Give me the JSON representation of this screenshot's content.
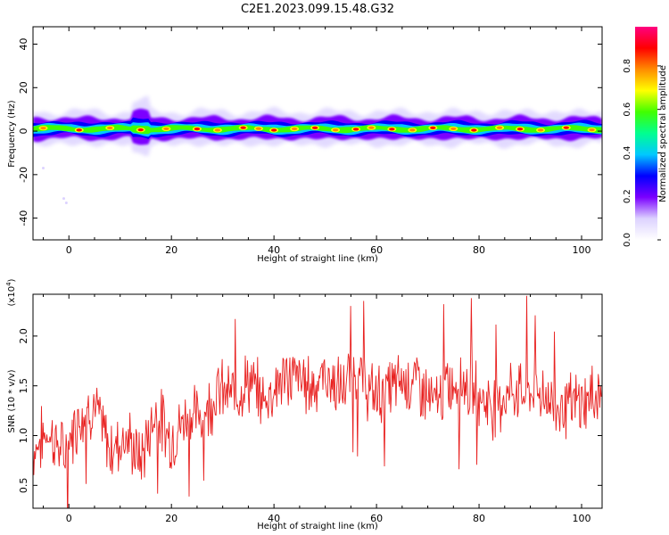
{
  "title": "C2E1.2023.099.15.48.G32",
  "colorbar": {
    "label": "Normalized spectral amplitude",
    "ticks": [
      "0.0",
      "0.2",
      "0.4",
      "0.6",
      "0.8"
    ],
    "tick_values": [
      0.0,
      0.2,
      0.4,
      0.6,
      0.8
    ],
    "range": [
      0.0,
      0.98
    ],
    "colors": [
      "#ffffff",
      "#dcd2ff",
      "#7b00ff",
      "#0000ff",
      "#00c8ff",
      "#00ff90",
      "#40ff00",
      "#ffff00",
      "#ff8c00",
      "#ff0000",
      "#ff0080"
    ]
  },
  "chart_data": [
    {
      "type": "heatmap",
      "xlabel": "Height of straight line (km)",
      "ylabel": "Frequency (Hz)",
      "xlim": [
        -7,
        104
      ],
      "ylim": [
        -50,
        48
      ],
      "x_ticks": [
        0,
        20,
        40,
        60,
        80,
        100
      ],
      "x_tick_labels": [
        "0",
        "20",
        "40",
        "60",
        "80",
        "100"
      ],
      "y_ticks": [
        -40,
        -20,
        0,
        20,
        40
      ],
      "y_tick_labels": [
        "-40",
        "-20",
        "0",
        "20",
        "40"
      ],
      "band": {
        "center_frequency_hz": 1,
        "core_halfwidth_hz": 2,
        "envelope_halfwidth_hz": 5,
        "notes": "Narrow high-amplitude band near 0-2 Hz across all heights"
      },
      "peak_heights_km": [
        -5,
        2,
        8,
        14,
        19,
        25,
        29,
        34,
        37,
        40,
        44,
        48,
        52,
        56,
        59,
        63,
        67,
        71,
        75,
        79,
        84,
        88,
        92,
        97,
        102
      ]
    },
    {
      "type": "line",
      "xlabel": "Height of straight line (km)",
      "ylabel": "SNR (10 * v/v)",
      "y_multiplier": "(x10",
      "y_multiplier_exp": "4",
      "xlim": [
        -7,
        104
      ],
      "ylim": [
        0.27,
        2.42
      ],
      "x_ticks": [
        0,
        20,
        40,
        60,
        80,
        100
      ],
      "x_tick_labels": [
        "0",
        "20",
        "40",
        "60",
        "80",
        "100"
      ],
      "y_ticks": [
        0.5,
        1.0,
        1.5,
        2.0
      ],
      "y_tick_labels": [
        "0.5",
        "1.0",
        "1.5",
        "2.0"
      ],
      "series": [
        {
          "color": "#e8201f",
          "x": [
            -7,
            -4,
            -1,
            2,
            5,
            8,
            11,
            14,
            17,
            20,
            23,
            26,
            29,
            32,
            35,
            38,
            41,
            44,
            47,
            50,
            53,
            56,
            59,
            62,
            65,
            68,
            71,
            74,
            77,
            80,
            83,
            86,
            89,
            92,
            95,
            98,
            101,
            104
          ],
          "y": [
            0.85,
            1.05,
            0.8,
            1.2,
            1.3,
            0.85,
            1.0,
            0.75,
            1.25,
            0.95,
            1.2,
            1.2,
            1.45,
            1.4,
            1.55,
            1.35,
            1.55,
            1.6,
            1.5,
            1.6,
            1.45,
            1.65,
            1.4,
            1.45,
            1.55,
            1.55,
            1.3,
            1.5,
            1.55,
            1.4,
            1.3,
            1.45,
            1.45,
            1.45,
            1.3,
            1.3,
            1.35,
            1.45
          ]
        }
      ]
    }
  ]
}
